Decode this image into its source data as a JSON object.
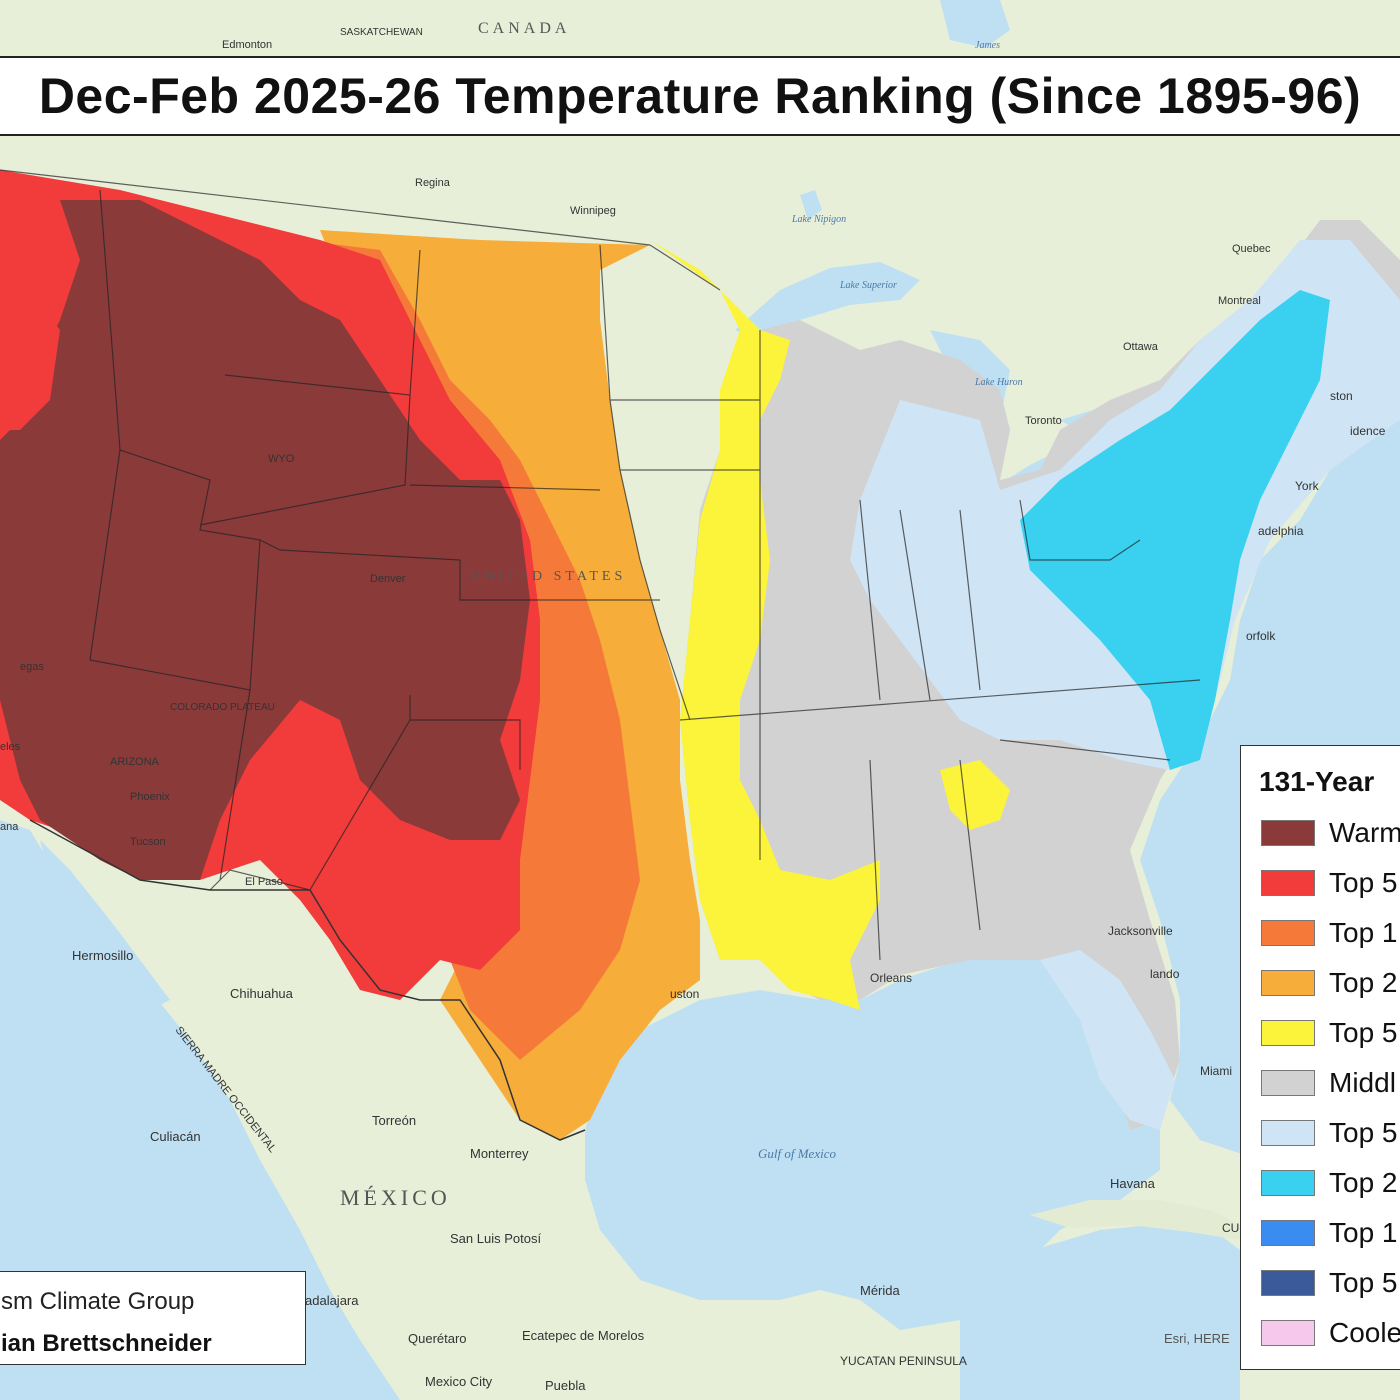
{
  "title": "Dec-Feb 2025-26 Temperature Ranking (Since 1895-96)",
  "legend": {
    "title": "131-Year",
    "items": [
      {
        "label": "Warm",
        "color": "#8b3a3a"
      },
      {
        "label": "Top 5",
        "color": "#f23b3b"
      },
      {
        "label": "Top 1",
        "color": "#f57a3a"
      },
      {
        "label": "Top 2",
        "color": "#f7ad3a"
      },
      {
        "label": "Top 5",
        "color": "#fbf43a"
      },
      {
        "label": "Middl",
        "color": "#d2d2d2"
      },
      {
        "label": "Top 5",
        "color": "#cfe5f5"
      },
      {
        "label": "Top 2",
        "color": "#3ad0f0"
      },
      {
        "label": "Top 1",
        "color": "#3a8cf0"
      },
      {
        "label": "Top 5",
        "color": "#3a5a9a"
      },
      {
        "label": "Coole",
        "color": "#f6c8ec"
      }
    ]
  },
  "credit": {
    "organization": "sm Climate Group",
    "author": "ian Brettschneider"
  },
  "attribution": "Esri, HERE",
  "places": {
    "canada": "CANADA",
    "saskatchewan": "SASKATCHEWAN",
    "edmonton": "Edmonton",
    "regina": "Regina",
    "winnipeg": "Winnipeg",
    "lake_nipigon": "Lake Nipigon",
    "lake_superior": "Lake Superior",
    "lake_huron": "Lake Huron",
    "quebec": "Quebec",
    "montreal": "Montreal",
    "ottawa": "Ottawa",
    "toronto": "Toronto",
    "boston": "ston",
    "providence": "idence",
    "new_york": "York",
    "philadelphia": "adelphia",
    "norfolk": "orfolk",
    "wyoming": "WYO",
    "united_states": "UNITED STATES",
    "denver": "Denver",
    "las_vegas": "egas",
    "los_angeles": "eles",
    "arizona": "ARIZONA",
    "phoenix": "Phoenix",
    "tucson": "Tucson",
    "el_paso": "El Paso",
    "colorado_plateau": "COLORADO PLATEAU",
    "houston": "uston",
    "new_orleans": "Orleans",
    "jacksonville": "Jacksonville",
    "orlando": "lando",
    "miami": "Miami",
    "havana": "Havana",
    "gulf_of_mexico": "Gulf of Mexico",
    "hermosillo": "Hermosillo",
    "chihuahua": "Chihuahua",
    "sierra_madre": "SIERRA MADRE OCCIDENTAL",
    "torreon": "Torreón",
    "monterrey": "Monterrey",
    "culiacan": "Culiacán",
    "mexico": "MÉXICO",
    "san_luis_potosi": "San Luis Potosí",
    "guadalajara": "adalajara",
    "queretaro": "Querétaro",
    "ecatepec": "Ecatepec de Morelos",
    "mexico_city": "Mexico City",
    "puebla": "Puebla",
    "merida": "Mérida",
    "yucatan": "YUCATAN PENINSULA",
    "james_bay": "James",
    "cuba": "CU",
    "tijuana": "ana"
  }
}
